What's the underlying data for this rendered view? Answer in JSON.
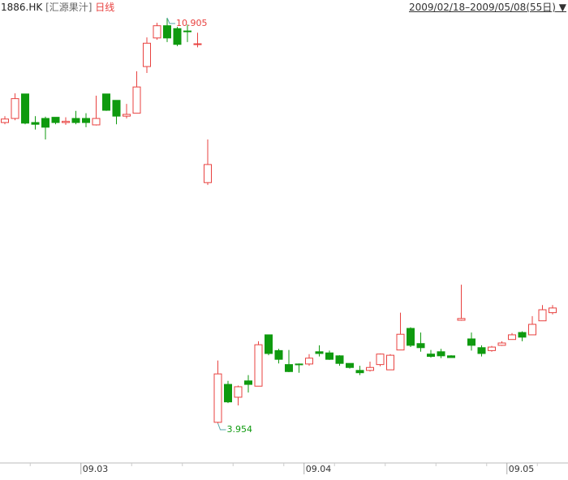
{
  "header": {
    "symbol": "1886.HK",
    "name": "[汇源果汁]",
    "period": "日线",
    "date_range": "2009/02/18–2009/05/08(55日)"
  },
  "chart_data": {
    "type": "candlestick",
    "up_color": "#e8413f",
    "down_color": "#0f9a0f",
    "categories": [
      null,
      null,
      null,
      null,
      null,
      null,
      null,
      null,
      "09.03",
      null,
      null,
      null,
      null,
      null,
      null,
      null,
      null,
      null,
      null,
      null,
      null,
      null,
      null,
      null,
      null,
      null,
      null,
      null,
      null,
      null,
      "09.04",
      null,
      null,
      null,
      null,
      null,
      null,
      null,
      null,
      null,
      null,
      null,
      null,
      null,
      null,
      null,
      null,
      null,
      null,
      null,
      "09.05",
      null,
      null,
      null,
      null
    ],
    "open": [
      9.11,
      9.18,
      9.6,
      9.11,
      9.18,
      9.2,
      9.11,
      9.18,
      9.18,
      9.07,
      9.6,
      9.49,
      9.22,
      9.27,
      10.07,
      10.56,
      10.77,
      10.72,
      10.68,
      10.45,
      8.08,
      3.97,
      4.62,
      4.4,
      4.68,
      4.59,
      5.47,
      5.2,
      4.96,
      4.97,
      4.97,
      5.18,
      5.16,
      5.11,
      4.98,
      4.86,
      4.86,
      4.96,
      4.87,
      5.21,
      5.58,
      5.32,
      5.14,
      5.18,
      5.11,
      5.72,
      5.4,
      5.25,
      5.2,
      5.29,
      5.39,
      5.51,
      5.47,
      5.71,
      5.85
    ],
    "high": [
      9.22,
      9.61,
      9.6,
      9.22,
      9.21,
      9.2,
      9.2,
      9.31,
      9.27,
      9.57,
      9.6,
      9.49,
      9.43,
      9.99,
      10.57,
      10.82,
      10.905,
      10.75,
      10.79,
      10.65,
      8.82,
      5.03,
      4.68,
      4.6,
      4.78,
      5.36,
      5.47,
      5.23,
      5.21,
      4.98,
      5.14,
      5.29,
      5.2,
      5.12,
      4.98,
      4.94,
      5.01,
      5.15,
      5.14,
      5.85,
      5.6,
      5.51,
      5.21,
      5.23,
      5.12,
      6.33,
      5.51,
      5.29,
      5.28,
      5.36,
      5.5,
      5.53,
      5.79,
      5.98,
      5.98
    ],
    "low": [
      9.08,
      9.15,
      9.08,
      8.99,
      8.82,
      9.08,
      9.07,
      9.08,
      9.03,
      9.06,
      9.31,
      9.08,
      9.18,
      9.27,
      9.96,
      10.53,
      10.49,
      10.42,
      10.49,
      10.4,
      8.04,
      3.954,
      4.3,
      4.26,
      4.48,
      4.59,
      5.12,
      4.98,
      4.83,
      4.82,
      4.94,
      5.1,
      5.04,
      4.94,
      4.89,
      4.78,
      4.84,
      4.93,
      4.87,
      5.21,
      5.26,
      5.18,
      5.08,
      5.07,
      5.08,
      5.71,
      5.2,
      5.1,
      5.18,
      5.28,
      5.39,
      5.36,
      5.47,
      5.71,
      5.82
    ],
    "close": [
      9.17,
      9.52,
      9.1,
      9.08,
      9.03,
      9.11,
      9.13,
      9.11,
      9.11,
      9.18,
      9.32,
      9.22,
      9.25,
      9.72,
      10.47,
      10.77,
      10.56,
      10.45,
      10.67,
      10.46,
      8.39,
      4.8,
      4.32,
      4.58,
      4.62,
      5.3,
      5.15,
      5.05,
      4.84,
      4.96,
      5.07,
      5.15,
      5.05,
      4.98,
      4.91,
      4.82,
      4.91,
      5.14,
      5.12,
      5.48,
      5.29,
      5.25,
      5.1,
      5.11,
      5.08,
      5.75,
      5.29,
      5.15,
      5.26,
      5.33,
      5.47,
      5.43,
      5.65,
      5.9,
      5.93
    ],
    "annotations": [
      10.905,
      3.954
    ]
  }
}
